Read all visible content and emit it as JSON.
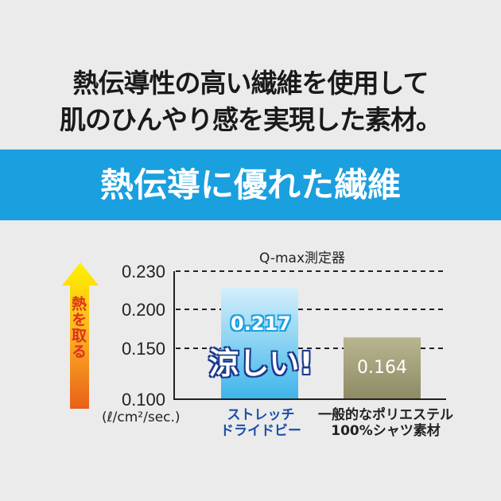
{
  "headline": {
    "line1": "熱伝導性の高い繊維を使用して",
    "line2": "肌のひんやり感を実現した素材。"
  },
  "banner": {
    "text": "熱伝導に優れた繊維",
    "color": "#1a9fdf"
  },
  "chart_data": {
    "type": "bar",
    "title": "Q-max測定器",
    "ylabel": "熱を取る",
    "unit": "(ℓ/cm²/sec.)",
    "ylim": [
      0.1,
      0.23
    ],
    "yticks": [
      "0.230",
      "0.200",
      "0.150",
      "0.100"
    ],
    "grid": true,
    "categories": [
      "ストレッチ\nドライドビー",
      "一般的なポリエステル\n100%シャツ素材"
    ],
    "values": [
      0.217,
      0.164
    ],
    "value_labels": [
      "0.217",
      "0.164"
    ],
    "annotation": "涼しい!",
    "colors": [
      "#5bc3ee",
      "#9a9470"
    ]
  }
}
